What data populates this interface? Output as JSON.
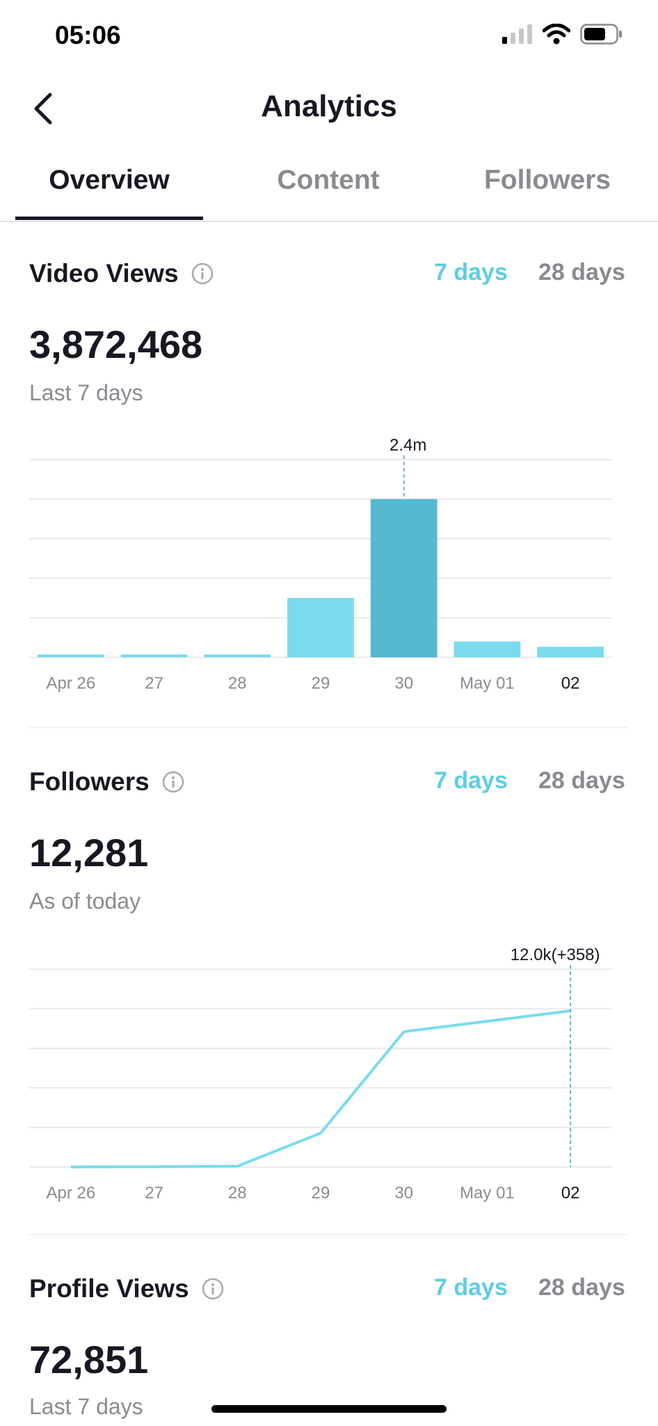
{
  "status_bar": {
    "time": "05:06",
    "icons": [
      "signal-icon",
      "wifi-icon",
      "battery-icon"
    ]
  },
  "header": {
    "title": "Analytics",
    "back_icon": "chevron-left-icon"
  },
  "tabs": [
    {
      "label": "Overview",
      "active": true
    },
    {
      "label": "Content",
      "active": false
    },
    {
      "label": "Followers",
      "active": false
    }
  ],
  "colors": {
    "accent": "#5dcde5",
    "bar": "#7adbec",
    "bar_highlight": "#56b9d2",
    "text": "#161823",
    "muted": "#8a8b91"
  },
  "video_views": {
    "title": "Video Views",
    "range_active": "7 days",
    "range_other": "28 days",
    "value": "3,872,468",
    "note": "Last 7 days",
    "tooltip": "2.4m"
  },
  "followers": {
    "title": "Followers",
    "range_active": "7 days",
    "range_other": "28 days",
    "value": "12,281",
    "note": "As of today",
    "tooltip": "12.0k(+358)"
  },
  "profile_views": {
    "title": "Profile Views",
    "range_active": "7 days",
    "range_other": "28 days",
    "value": "72,851",
    "note": "Last 7 days"
  },
  "chart_data": [
    {
      "type": "bar",
      "categories": [
        "Apr 26",
        "27",
        "28",
        "29",
        "30",
        "May 01",
        "02"
      ],
      "values": [
        40000,
        15000,
        10000,
        900000,
        2400000,
        240000,
        160000
      ],
      "highlight_index": 4,
      "ylim": [
        0,
        3000000
      ],
      "grid": true
    },
    {
      "type": "line",
      "categories": [
        "Apr 26",
        "27",
        "28",
        "29",
        "30",
        "May 01",
        "02"
      ],
      "values": [
        0,
        5,
        15,
        650,
        2600,
        2800,
        3000
      ],
      "highlight_index": 6,
      "ylim": [
        0,
        3800
      ],
      "grid": true
    }
  ]
}
